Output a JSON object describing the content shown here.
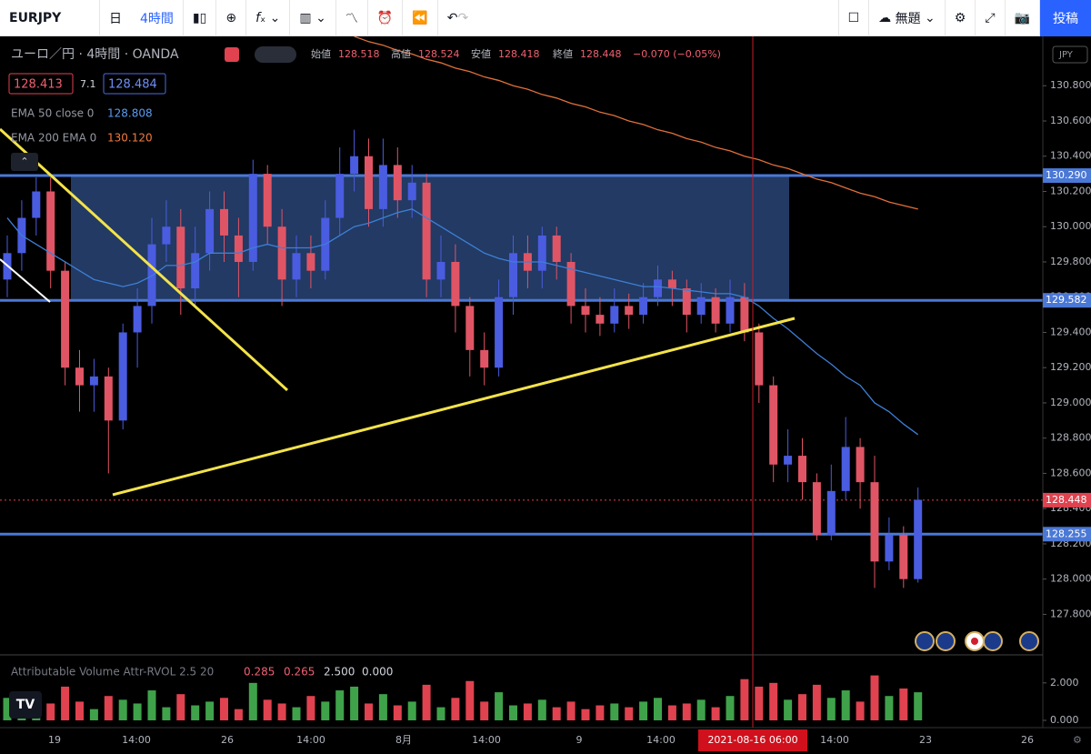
{
  "toolbar": {
    "symbol": "EURJPY",
    "period_day": "日",
    "interval": "4時間",
    "layout_name": "無題",
    "publish": "投稿"
  },
  "legend": {
    "instrument": "ユーロ／円 · 4時間 · OANDA",
    "open_label": "始値",
    "open": "128.518",
    "high_label": "高値",
    "high": "128.524",
    "low_label": "安値",
    "low": "128.418",
    "close_label": "終値",
    "close": "128.448",
    "change": "−0.070 (−0.05%)",
    "bid": "128.413",
    "spread": "7.1",
    "ask": "128.484",
    "ema50_name": "EMA 50 close 0",
    "ema50_value": "128.808",
    "ema200_name": "EMA 200 EMA 0",
    "ema200_value": "130.120",
    "volume_name": "Attributable Volume Attr-RVOL 2.5 20",
    "volume_v1": "0.285",
    "volume_v2": "0.265",
    "volume_v3": "2.500",
    "volume_v4": "0.000"
  },
  "chart_data": {
    "type": "candlestick",
    "currency": "JPY",
    "up_color": "#4a5ce0",
    "down_color": "#e05565",
    "ema50_color": "#3d7fd6",
    "ema200_color": "#e0703a",
    "volume_up_color": "#3fa24a",
    "volume_down_color": "#e0424f",
    "candles": [
      [
        129.7,
        129.95,
        129.6,
        129.85
      ],
      [
        129.85,
        130.15,
        129.75,
        130.05
      ],
      [
        130.05,
        130.28,
        129.95,
        130.2
      ],
      [
        130.2,
        130.28,
        129.65,
        129.75
      ],
      [
        129.75,
        129.8,
        129.1,
        129.2
      ],
      [
        129.2,
        129.3,
        128.95,
        129.1
      ],
      [
        129.1,
        129.25,
        128.95,
        129.15
      ],
      [
        129.15,
        129.2,
        128.6,
        128.9
      ],
      [
        128.9,
        129.45,
        128.85,
        129.4
      ],
      [
        129.4,
        129.65,
        129.2,
        129.55
      ],
      [
        129.55,
        130.05,
        129.45,
        129.9
      ],
      [
        129.9,
        130.15,
        129.8,
        130.0
      ],
      [
        130.0,
        130.1,
        129.5,
        129.65
      ],
      [
        129.65,
        130.0,
        129.55,
        129.85
      ],
      [
        129.85,
        130.2,
        129.75,
        130.1
      ],
      [
        130.1,
        130.2,
        129.8,
        129.95
      ],
      [
        129.95,
        130.05,
        129.6,
        129.8
      ],
      [
        129.8,
        130.38,
        129.75,
        130.3
      ],
      [
        130.3,
        130.35,
        129.9,
        130.0
      ],
      [
        130.0,
        130.1,
        129.55,
        129.7
      ],
      [
        129.7,
        129.95,
        129.6,
        129.85
      ],
      [
        129.85,
        129.95,
        129.65,
        129.75
      ],
      [
        129.75,
        130.15,
        129.7,
        130.05
      ],
      [
        130.05,
        130.45,
        129.95,
        130.3
      ],
      [
        130.3,
        130.55,
        130.2,
        130.4
      ],
      [
        130.4,
        130.5,
        130.0,
        130.1
      ],
      [
        130.1,
        130.5,
        130.0,
        130.35
      ],
      [
        130.35,
        130.45,
        130.05,
        130.15
      ],
      [
        130.15,
        130.35,
        130.05,
        130.25
      ],
      [
        130.25,
        130.3,
        129.6,
        129.7
      ],
      [
        129.7,
        129.95,
        129.6,
        129.8
      ],
      [
        129.8,
        129.9,
        129.4,
        129.55
      ],
      [
        129.55,
        129.6,
        129.15,
        129.3
      ],
      [
        129.3,
        129.4,
        129.1,
        129.2
      ],
      [
        129.2,
        129.7,
        129.15,
        129.6
      ],
      [
        129.6,
        129.95,
        129.5,
        129.85
      ],
      [
        129.85,
        129.95,
        129.65,
        129.75
      ],
      [
        129.75,
        130.0,
        129.65,
        129.95
      ],
      [
        129.95,
        130.0,
        129.7,
        129.8
      ],
      [
        129.8,
        129.85,
        129.45,
        129.55
      ],
      [
        129.55,
        129.65,
        129.4,
        129.5
      ],
      [
        129.5,
        129.6,
        129.38,
        129.45
      ],
      [
        129.45,
        129.65,
        129.4,
        129.55
      ],
      [
        129.55,
        129.62,
        129.42,
        129.5
      ],
      [
        129.5,
        129.68,
        129.45,
        129.6
      ],
      [
        129.6,
        129.78,
        129.55,
        129.7
      ],
      [
        129.7,
        129.75,
        129.55,
        129.65
      ],
      [
        129.65,
        129.7,
        129.4,
        129.5
      ],
      [
        129.5,
        129.68,
        129.45,
        129.6
      ],
      [
        129.6,
        129.65,
        129.4,
        129.45
      ],
      [
        129.45,
        129.7,
        129.4,
        129.6
      ],
      [
        129.6,
        129.68,
        129.35,
        129.4
      ],
      [
        129.4,
        129.45,
        129.0,
        129.1
      ],
      [
        129.1,
        129.15,
        128.55,
        128.65
      ],
      [
        128.65,
        128.85,
        128.55,
        128.7
      ],
      [
        128.7,
        128.8,
        128.45,
        128.55
      ],
      [
        128.55,
        128.6,
        128.22,
        128.25
      ],
      [
        128.25,
        128.65,
        128.22,
        128.5
      ],
      [
        128.5,
        128.92,
        128.45,
        128.75
      ],
      [
        128.75,
        128.8,
        128.4,
        128.55
      ],
      [
        128.55,
        128.7,
        127.95,
        128.1
      ],
      [
        128.1,
        128.35,
        128.05,
        128.25
      ],
      [
        128.25,
        128.3,
        127.95,
        128.0
      ],
      [
        128.0,
        128.52,
        127.98,
        128.45
      ]
    ],
    "ema50": [
      130.05,
      129.95,
      129.9,
      129.85,
      129.8,
      129.75,
      129.7,
      129.68,
      129.66,
      129.68,
      129.72,
      129.78,
      129.78,
      129.8,
      129.85,
      129.85,
      129.85,
      129.88,
      129.9,
      129.88,
      129.88,
      129.88,
      129.9,
      129.95,
      130.0,
      130.02,
      130.05,
      130.08,
      130.1,
      130.05,
      130.0,
      129.95,
      129.9,
      129.85,
      129.82,
      129.8,
      129.8,
      129.8,
      129.78,
      129.76,
      129.74,
      129.72,
      129.7,
      129.68,
      129.66,
      129.66,
      129.65,
      129.64,
      129.63,
      129.62,
      129.62,
      129.6,
      129.55,
      129.48,
      129.42,
      129.35,
      129.28,
      129.22,
      129.15,
      129.1,
      129.0,
      128.95,
      128.88,
      128.82
    ],
    "ema200": [
      null,
      null,
      null,
      null,
      null,
      null,
      null,
      null,
      null,
      null,
      null,
      null,
      null,
      null,
      null,
      null,
      null,
      null,
      null,
      null,
      null,
      null,
      null,
      null,
      131.08,
      131.05,
      131.03,
      131.0,
      130.98,
      130.95,
      130.93,
      130.9,
      130.88,
      130.85,
      130.83,
      130.8,
      130.78,
      130.75,
      130.73,
      130.7,
      130.68,
      130.65,
      130.63,
      130.6,
      130.58,
      130.55,
      130.53,
      130.5,
      130.48,
      130.45,
      130.43,
      130.4,
      130.38,
      130.35,
      130.33,
      130.3,
      130.27,
      130.25,
      130.22,
      130.19,
      130.17,
      130.14,
      130.12,
      130.1
    ],
    "volume": [
      1.2,
      0.8,
      1.5,
      0.9,
      1.8,
      1.0,
      0.6,
      1.3,
      1.1,
      0.9,
      1.6,
      0.7,
      1.4,
      0.8,
      1.0,
      1.2,
      0.6,
      2.0,
      1.1,
      0.9,
      0.7,
      1.3,
      1.0,
      1.6,
      1.8,
      0.9,
      1.4,
      0.8,
      1.0,
      1.9,
      0.7,
      1.2,
      2.1,
      1.0,
      1.5,
      0.8,
      0.9,
      1.1,
      0.7,
      1.0,
      0.6,
      0.8,
      0.9,
      0.7,
      1.0,
      1.2,
      0.8,
      0.9,
      1.1,
      0.7,
      1.3,
      2.2,
      1.8,
      2.0,
      1.1,
      1.4,
      1.9,
      1.2,
      1.6,
      1.0,
      2.4,
      1.3,
      1.7,
      1.5
    ],
    "ylim": [
      127.57,
      131.08
    ],
    "yticks": [
      {
        "value": 130.8,
        "label": "130.800"
      },
      {
        "value": 130.6,
        "label": "130.600"
      },
      {
        "value": 130.4,
        "label": "130.400"
      },
      {
        "value": 130.2,
        "label": "130.200"
      },
      {
        "value": 130.0,
        "label": "130.000"
      },
      {
        "value": 129.8,
        "label": "129.800"
      },
      {
        "value": 129.6,
        "label": "129.600"
      },
      {
        "value": 129.4,
        "label": "129.400"
      },
      {
        "value": 129.2,
        "label": "129.200"
      },
      {
        "value": 129.0,
        "label": "129.000"
      },
      {
        "value": 128.8,
        "label": "128.800"
      },
      {
        "value": 128.6,
        "label": "128.600"
      },
      {
        "value": 128.4,
        "label": "128.400"
      },
      {
        "value": 128.2,
        "label": "128.200"
      },
      {
        "value": 128.0,
        "label": "128.000"
      },
      {
        "value": 127.8,
        "label": "127.800"
      }
    ],
    "volume_ylim": [
      0,
      3.4
    ],
    "volume_yticks": [
      {
        "value": 2,
        "label": "2.000"
      },
      {
        "value": 0,
        "label": "0.000"
      }
    ],
    "price_lines": [
      {
        "value": 130.29,
        "label": "130.290",
        "color": "#4a78d6"
      },
      {
        "value": 129.582,
        "label": "129.582",
        "color": "#4a78d6"
      },
      {
        "value": 128.448,
        "label": "128.448",
        "color": "#e0424f"
      },
      {
        "value": 128.255,
        "label": "128.255",
        "color": "#4a78d6"
      }
    ],
    "x_labels": [
      "19",
      "14:00",
      "26",
      "14:00",
      "8月",
      "14:00",
      "9",
      "14:00",
      "14:00",
      "23",
      "26"
    ],
    "crosshair_label": "2021-08-16  06:00"
  }
}
